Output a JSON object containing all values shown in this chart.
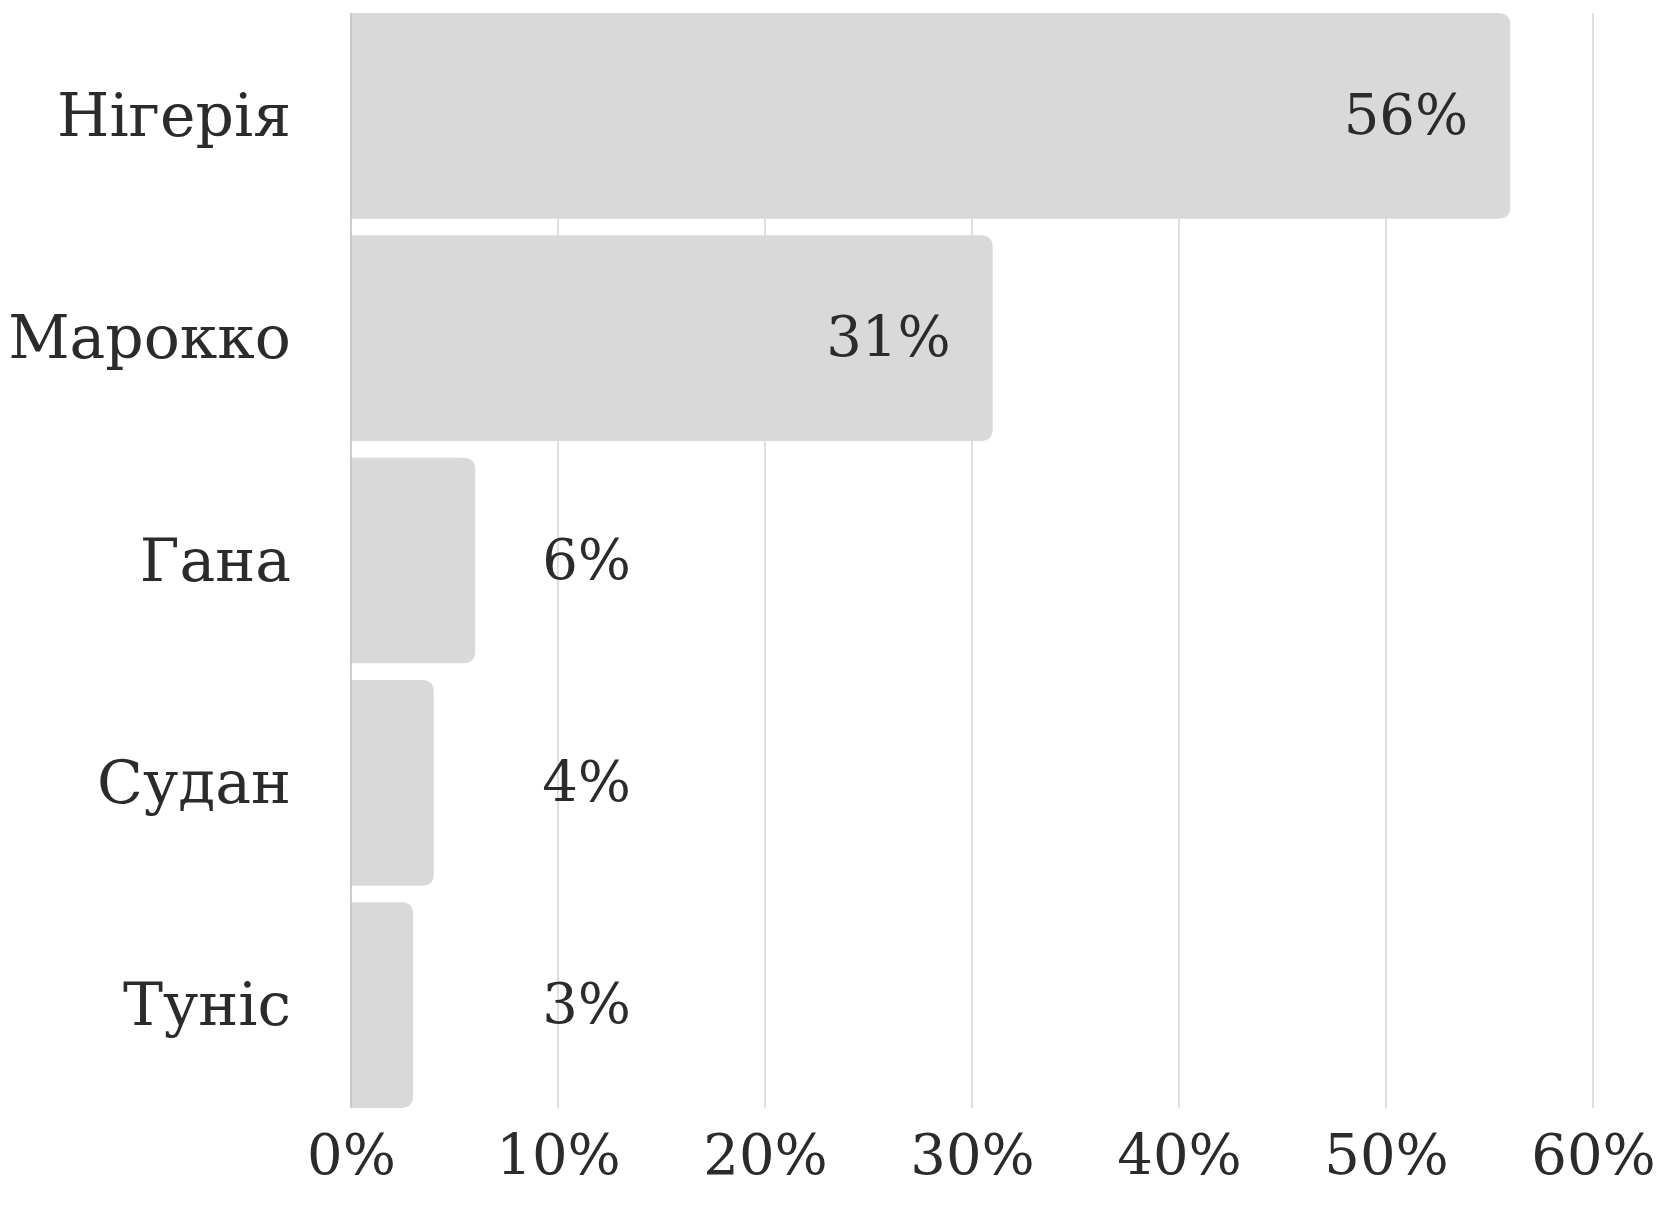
{
  "chart_data": {
    "type": "bar",
    "orientation": "horizontal",
    "categories": [
      "Нігерія",
      "Марокко",
      "Гана",
      "Судан",
      "Туніс"
    ],
    "values": [
      56,
      31,
      6,
      4,
      3
    ],
    "color": "#d9d9d9",
    "value_labels": [
      "56%",
      "31%",
      "6%",
      "4%",
      "3%"
    ],
    "xlim": [
      0,
      60
    ],
    "xticks": [
      {
        "value": 0,
        "label": "0%"
      },
      {
        "value": 10,
        "label": "10%"
      },
      {
        "value": 20,
        "label": "20%"
      },
      {
        "value": 30,
        "label": "30%"
      },
      {
        "value": 40,
        "label": "40%"
      },
      {
        "value": 50,
        "label": "50%"
      },
      {
        "value": 60,
        "label": "60%"
      }
    ],
    "grid": "x"
  }
}
